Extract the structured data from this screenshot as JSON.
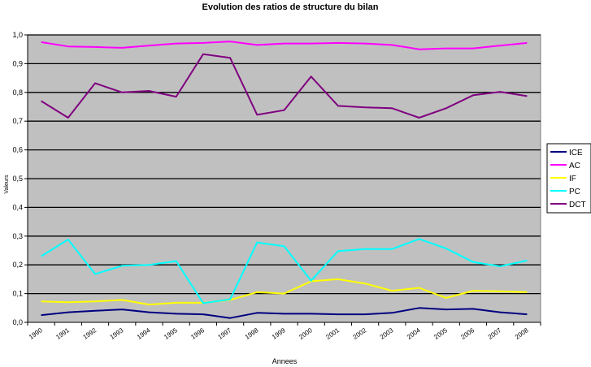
{
  "chart_data": {
    "type": "line",
    "title": "Evolution des ratios de structure du bilan",
    "xlabel": "Annees",
    "ylabel": "Valeurs",
    "x": [
      "1990",
      "1991",
      "1992",
      "1993",
      "1994",
      "1995",
      "1996",
      "1997",
      "1998",
      "1999",
      "2000",
      "2001",
      "2002",
      "2003",
      "2004",
      "2005",
      "2006",
      "2007",
      "2008"
    ],
    "x_tick_labels": [
      "1990",
      "1991",
      "1992",
      "1993",
      "1994",
      "1995",
      "1996",
      "1997",
      "1998",
      "1999",
      "2000",
      "2001",
      "2002",
      "2003",
      "2004",
      "2005",
      "2006",
      "2007",
      "2008"
    ],
    "ylim": [
      0,
      1
    ],
    "y_ticks": [
      "0,0",
      "0,1",
      "0,2",
      "0,3",
      "0,4",
      "0,5",
      "0,6",
      "0,7",
      "0,8",
      "0,9",
      "1,0"
    ],
    "grid": true,
    "legend_position": "right",
    "plot_background": "#c0c0c0",
    "series": [
      {
        "name": "ICE",
        "color": "#000080",
        "values": [
          0.025,
          0.035,
          0.04,
          0.045,
          0.035,
          0.03,
          0.028,
          0.015,
          0.033,
          0.03,
          0.03,
          0.028,
          0.028,
          0.033,
          0.05,
          0.045,
          0.047,
          0.035,
          0.028
        ]
      },
      {
        "name": "AC",
        "color": "#ff00ff",
        "values": [
          0.975,
          0.96,
          0.958,
          0.955,
          0.963,
          0.97,
          0.972,
          0.977,
          0.965,
          0.97,
          0.97,
          0.972,
          0.97,
          0.965,
          0.95,
          0.953,
          0.953,
          0.963,
          0.972
        ]
      },
      {
        "name": "IF",
        "color": "#ffff00",
        "values": [
          0.073,
          0.07,
          0.073,
          0.078,
          0.062,
          0.068,
          0.068,
          0.078,
          0.105,
          0.1,
          0.143,
          0.15,
          0.135,
          0.11,
          0.12,
          0.085,
          0.11,
          0.108,
          0.105
        ]
      },
      {
        "name": "PC",
        "color": "#00ffff",
        "values": [
          0.23,
          0.288,
          0.168,
          0.197,
          0.2,
          0.213,
          0.067,
          0.08,
          0.278,
          0.265,
          0.145,
          0.248,
          0.255,
          0.255,
          0.29,
          0.257,
          0.21,
          0.195,
          0.215
        ]
      },
      {
        "name": "DCT",
        "color": "#800080",
        "values": [
          0.77,
          0.712,
          0.832,
          0.8,
          0.805,
          0.785,
          0.933,
          0.92,
          0.722,
          0.738,
          0.855,
          0.753,
          0.748,
          0.745,
          0.712,
          0.745,
          0.79,
          0.802,
          0.787
        ]
      }
    ]
  }
}
